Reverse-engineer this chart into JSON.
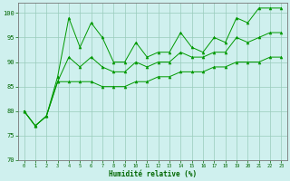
{
  "title": "",
  "xlabel": "Humidité relative (%)",
  "ylabel": "",
  "xlim": [
    -0.5,
    23.5
  ],
  "ylim": [
    70,
    102
  ],
  "yticks": [
    70,
    75,
    80,
    85,
    90,
    95,
    100
  ],
  "xticks": [
    0,
    1,
    2,
    3,
    4,
    5,
    6,
    7,
    8,
    9,
    10,
    11,
    12,
    13,
    14,
    15,
    16,
    17,
    18,
    19,
    20,
    21,
    22,
    23
  ],
  "bg_color": "#cff0ee",
  "grid_color": "#99ccbb",
  "line_color": "#009900",
  "x": [
    0,
    1,
    2,
    3,
    4,
    5,
    6,
    7,
    8,
    9,
    10,
    11,
    12,
    13,
    14,
    15,
    16,
    17,
    18,
    19,
    20,
    21,
    22,
    23
  ],
  "y_top": [
    80,
    77,
    79,
    87,
    99,
    93,
    98,
    95,
    90,
    90,
    94,
    91,
    92,
    92,
    96,
    93,
    92,
    95,
    94,
    99,
    98,
    101,
    101,
    101
  ],
  "y_mid": [
    80,
    77,
    79,
    86,
    91,
    89,
    91,
    89,
    88,
    88,
    90,
    89,
    90,
    90,
    92,
    91,
    91,
    92,
    92,
    95,
    94,
    95,
    96,
    96
  ],
  "y_bot": [
    80,
    77,
    79,
    86,
    86,
    86,
    86,
    85,
    85,
    85,
    86,
    86,
    87,
    87,
    88,
    88,
    88,
    89,
    89,
    90,
    90,
    90,
    91,
    91
  ]
}
